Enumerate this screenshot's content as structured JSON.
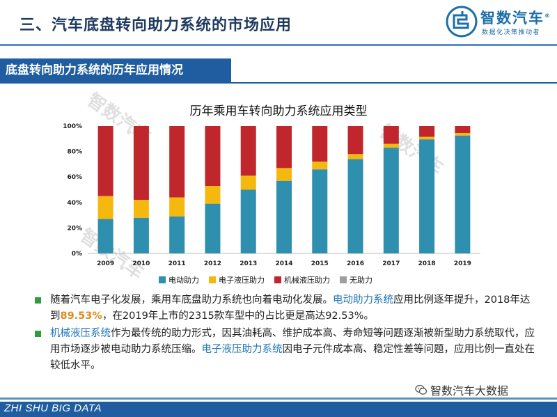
{
  "header": {
    "title": "三、汽车底盘转向助力系统的市场应用",
    "logo_name": "智数汽车",
    "logo_reg": "®",
    "logo_slogan": "数据化决策推动者"
  },
  "section": {
    "title": "底盘转向助力系统的历年应用情况"
  },
  "watermark": {
    "text": "智数汽车"
  },
  "chart_data": {
    "type": "bar",
    "stacked": true,
    "title": "历年乘用车转向助力系统应用类型",
    "categories": [
      "2009",
      "2010",
      "2011",
      "2012",
      "2013",
      "2014",
      "2015",
      "2016",
      "2017",
      "2018",
      "2019"
    ],
    "ylim": [
      0,
      100
    ],
    "yticks": [
      "0%",
      "20%",
      "40%",
      "60%",
      "80%",
      "100%"
    ],
    "grid": false,
    "legend_position": "bottom",
    "series": [
      {
        "name": "电动助力",
        "color": "#2e8fae",
        "values": [
          27,
          28,
          29,
          39,
          50,
          57,
          66,
          74,
          83,
          89.53,
          92.53
        ]
      },
      {
        "name": "电子液压助力",
        "color": "#f5b80f",
        "values": [
          18,
          14,
          15,
          14,
          11,
          10,
          6,
          4,
          3,
          2,
          2
        ]
      },
      {
        "name": "机械液压助力",
        "color": "#c0272d",
        "values": [
          55,
          58,
          56,
          47,
          39,
          33,
          28,
          22,
          14,
          8.47,
          5.47
        ]
      },
      {
        "name": "无助力",
        "color": "#9e9e9e",
        "values": [
          0,
          0,
          0,
          0,
          0,
          0,
          0,
          0,
          0,
          0,
          0
        ]
      }
    ]
  },
  "bullets": [
    {
      "parts": [
        {
          "t": "随着汽车电子化发展，乘用车底盘助力系统也向着电动化发展。",
          "c": ""
        },
        {
          "t": "电动助力系统",
          "c": "hl-blue"
        },
        {
          "t": "应用比例逐年提升，2018年达到",
          "c": ""
        },
        {
          "t": "89.53%",
          "c": "hl-orange"
        },
        {
          "t": "，在2019年上市的2315款车型中的占比更是高达92.53%。",
          "c": ""
        }
      ]
    },
    {
      "parts": [
        {
          "t": "机械液压系统",
          "c": "hl-blue"
        },
        {
          "t": "作为最传统的助力形式，因其油耗高、维护成本高、寿命短等问题逐渐被新型助力系统取代，应用市场逐步被电动助力系统压缩。",
          "c": ""
        },
        {
          "t": "电子液压助力系统",
          "c": "hl-blue"
        },
        {
          "t": "因电子元件成本高、稳定性差等问题，应用比例一直处在较低水平。",
          "c": ""
        }
      ]
    }
  ],
  "wechat": {
    "label": "智数汽车大数据"
  },
  "footer": {
    "text": "ZHI SHU BIG DATA"
  }
}
